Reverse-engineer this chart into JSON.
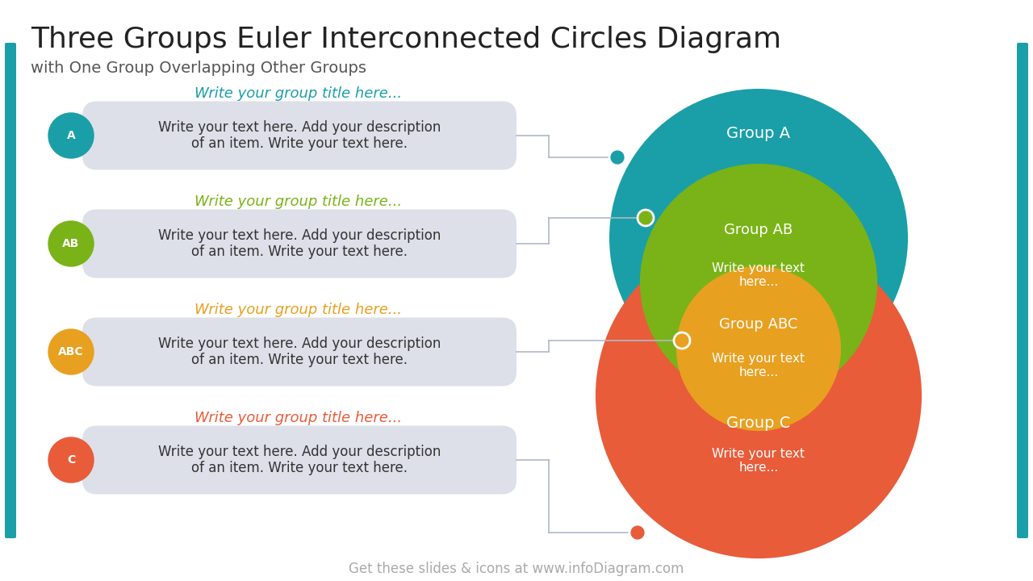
{
  "title": "Three Groups Euler Interconnected Circles Diagram",
  "subtitle": "with One Group Overlapping Other Groups",
  "title_fontsize": 26,
  "subtitle_fontsize": 14,
  "background_color": "#ffffff",
  "teal_bar_color": "#1a9fa8",
  "groups": [
    {
      "label": "A",
      "color": "#1a9fa8",
      "title_color": "#1a9fa8",
      "title": "Write your group title here...",
      "body": "Write your text here. Add your description\nof an item. Write your text here."
    },
    {
      "label": "AB",
      "color": "#7ab317",
      "title_color": "#7ab317",
      "title": "Write your group title here...",
      "body": "Write your text here. Add your description\nof an item. Write your text here."
    },
    {
      "label": "ABC",
      "color": "#e8a020",
      "title_color": "#e8a020",
      "title": "Write your group title here...",
      "body": "Write your text here. Add your description\nof an item. Write your text here."
    },
    {
      "label": "C",
      "color": "#e85c3a",
      "title_color": "#e85c3a",
      "title": "Write your group title here...",
      "body": "Write your text here. Add your description\nof an item. Write your text here."
    }
  ],
  "circle_A_color": "#1a9fa8",
  "circle_AB_color": "#7ab317",
  "circle_ABC_color": "#e8a020",
  "circle_C_color": "#e85c3a",
  "box_color": "#dde0e8",
  "line_color": "#b0b8c8",
  "footer": "Get these slides & icons at www.infoDiagram.com",
  "footer_color": "#aaaaaa",
  "footer_fontsize": 12
}
